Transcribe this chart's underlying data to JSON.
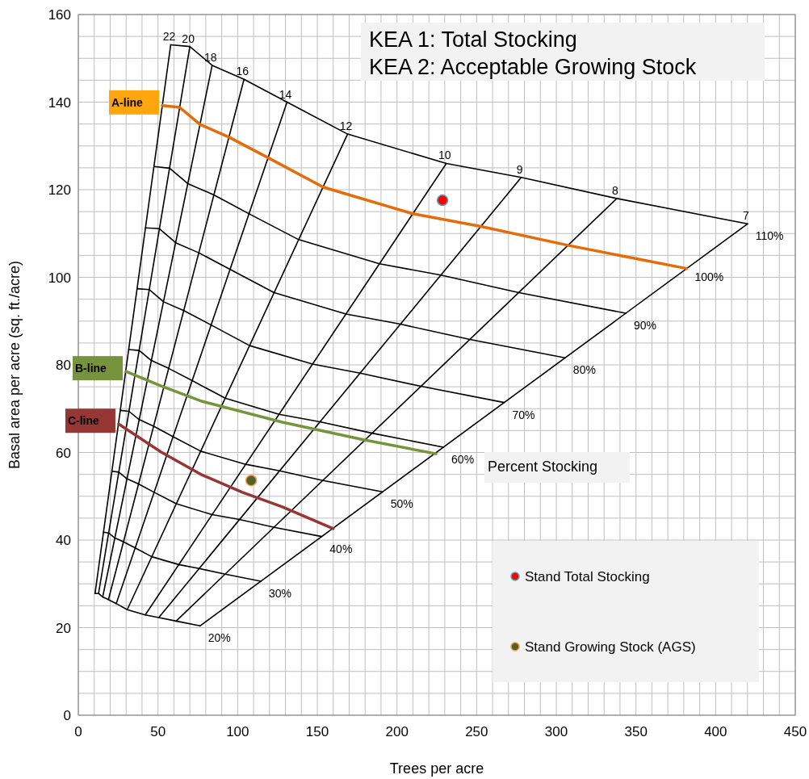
{
  "chart_data": {
    "type": "line",
    "title": "KEA 1: Total Stocking\nKEA 2: Acceptable Growing Stock",
    "xlabel": "Trees per acre",
    "ylabel": "Basal area per acre (sq. ft./acre)",
    "xlim": [
      0,
      450
    ],
    "ylim": [
      0,
      160
    ],
    "xticks": [
      0,
      {
        "value": 10,
        "label": null
      },
      {
        "value": 20,
        "label": null
      },
      {
        "value": 30,
        "label": null
      },
      {
        "value": 40,
        "label": null
      },
      50,
      {
        "value": 60,
        "label": null
      },
      {
        "value": 70,
        "label": null
      },
      {
        "value": 80,
        "label": null
      },
      {
        "value": 90,
        "label": null
      },
      100,
      {
        "value": 110,
        "label": null
      },
      {
        "value": 120,
        "label": null
      },
      {
        "value": 130,
        "label": null
      },
      {
        "value": 140,
        "label": null
      },
      150,
      {
        "value": 160,
        "label": null
      },
      {
        "value": 170,
        "label": null
      },
      {
        "value": 180,
        "label": null
      },
      {
        "value": 190,
        "label": null
      },
      200,
      {
        "value": 210,
        "label": null
      },
      {
        "value": 220,
        "label": null
      },
      {
        "value": 230,
        "label": null
      },
      {
        "value": 240,
        "label": null
      },
      250,
      {
        "value": 260,
        "label": null
      },
      {
        "value": 270,
        "label": null
      },
      {
        "value": 280,
        "label": null
      },
      {
        "value": 290,
        "label": null
      },
      300,
      {
        "value": 310,
        "label": null
      },
      {
        "value": 320,
        "label": null
      },
      {
        "value": 330,
        "label": null
      },
      {
        "value": 340,
        "label": null
      },
      350,
      {
        "value": 360,
        "label": null
      },
      {
        "value": 370,
        "label": null
      },
      {
        "value": 380,
        "label": null
      },
      {
        "value": 390,
        "label": null
      },
      400,
      {
        "value": 410,
        "label": null
      },
      {
        "value": 420,
        "label": null
      },
      {
        "value": 430,
        "label": null
      },
      {
        "value": 440,
        "label": null
      },
      450
    ],
    "yticks": [
      0,
      {
        "value": 5,
        "label": null
      },
      {
        "value": 10,
        "label": null
      },
      {
        "value": 15,
        "label": null
      },
      20,
      {
        "value": 25,
        "label": null
      },
      {
        "value": 30,
        "label": null
      },
      {
        "value": 35,
        "label": null
      },
      40,
      {
        "value": 45,
        "label": null
      },
      {
        "value": 50,
        "label": null
      },
      {
        "value": 55,
        "label": null
      },
      60,
      {
        "value": 65,
        "label": null
      },
      {
        "value": 70,
        "label": null
      },
      {
        "value": 75,
        "label": null
      },
      80,
      {
        "value": 85,
        "label": null
      },
      {
        "value": 90,
        "label": null
      },
      {
        "value": 95,
        "label": null
      },
      100,
      {
        "value": 105,
        "label": null
      },
      {
        "value": 110,
        "label": null
      },
      {
        "value": 115,
        "label": null
      },
      120,
      {
        "value": 125,
        "label": null
      },
      {
        "value": 130,
        "label": null
      },
      {
        "value": 135,
        "label": null
      },
      140,
      {
        "value": 145,
        "label": null
      },
      {
        "value": 150,
        "label": null
      },
      {
        "value": 155,
        "label": null
      },
      160
    ],
    "grid": true,
    "legend": "bottom right",
    "line_style": "solid",
    "series": [
      {
        "name": "22",
        "color": "#000000",
        "x": [
          10.5,
          58
        ],
        "values": [
          27.8,
          153.1
        ]
      },
      {
        "name": "20",
        "color": "#000000",
        "x": [
          12.7,
          70
        ],
        "values": [
          27.8,
          152.7
        ]
      },
      {
        "name": "18",
        "color": "#000000",
        "x": [
          15.3,
          84
        ],
        "values": [
          27.0,
          148.4
        ]
      },
      {
        "name": "16",
        "color": "#000000",
        "x": [
          18.9,
          104
        ],
        "values": [
          26.4,
          145.2
        ]
      },
      {
        "name": "14",
        "color": "#000000",
        "x": [
          23.8,
          131
        ],
        "values": [
          25.5,
          140.0
        ]
      },
      {
        "name": "12",
        "color": "#000000",
        "x": [
          30.7,
          169
        ],
        "values": [
          24.1,
          132.7
        ]
      },
      {
        "name": "10",
        "color": "#000000",
        "x": [
          42.0,
          231
        ],
        "values": [
          22.9,
          126.0
        ]
      },
      {
        "name": "9",
        "color": "#000000",
        "x": [
          50.5,
          278
        ],
        "values": [
          22.3,
          122.8
        ]
      },
      {
        "name": "8",
        "color": "#000000",
        "x": [
          61.4,
          338
        ],
        "values": [
          21.5,
          118.0
        ]
      },
      {
        "name": "7",
        "color": "#000000",
        "x": [
          76.4,
          420
        ],
        "values": [
          20.4,
          112.2
        ]
      },
      {
        "name": "20%",
        "color": "#000000",
        "x": [
          10.5,
          12.7,
          15.3,
          18.9,
          23.8,
          30.7,
          42.0,
          50.5,
          61.4,
          76.4
        ],
        "values": [
          27.8,
          27.8,
          27.0,
          26.4,
          25.5,
          24.1,
          22.9,
          22.3,
          21.5,
          20.4
        ]
      },
      {
        "name": "30%",
        "color": "#000000",
        "x": [
          15.8,
          19.1,
          22.9,
          28.4,
          35.7,
          46.1,
          63.0,
          75.8,
          92.2,
          114.5
        ],
        "values": [
          41.8,
          41.6,
          40.5,
          39.6,
          38.2,
          36.2,
          34.4,
          33.5,
          32.2,
          30.6
        ]
      },
      {
        "name": "40%",
        "color": "#000000",
        "x": [
          21.1,
          25.5,
          30.5,
          37.8,
          47.6,
          61.5,
          84.0,
          101.1,
          122.9,
          152.7
        ],
        "values": [
          55.7,
          55.5,
          54.0,
          52.8,
          50.9,
          48.3,
          45.8,
          44.7,
          42.9,
          40.8
        ]
      },
      {
        "name": "50%",
        "color": "#000000",
        "x": [
          26.4,
          31.8,
          38.2,
          47.3,
          59.5,
          76.8,
          105.0,
          126.4,
          153.6,
          190.9
        ],
        "values": [
          69.6,
          69.4,
          67.5,
          66.0,
          63.6,
          60.3,
          57.3,
          55.8,
          53.6,
          51.0
        ]
      },
      {
        "name": "60%",
        "color": "#000000",
        "x": [
          31.6,
          38.2,
          45.8,
          56.7,
          71.5,
          92.2,
          126.0,
          151.6,
          184.4,
          229.1
        ],
        "values": [
          83.5,
          83.3,
          81.0,
          79.2,
          76.4,
          72.4,
          68.7,
          67.0,
          64.4,
          61.2
        ]
      },
      {
        "name": "70%",
        "color": "#000000",
        "x": [
          36.9,
          44.5,
          53.5,
          66.2,
          83.4,
          107.5,
          147.0,
          176.9,
          215.1,
          267.3
        ],
        "values": [
          97.4,
          97.2,
          94.4,
          92.4,
          89.1,
          84.4,
          80.2,
          78.1,
          75.1,
          71.4
        ]
      },
      {
        "name": "80%",
        "color": "#000000",
        "x": [
          42.2,
          50.9,
          61.1,
          75.6,
          95.3,
          122.9,
          168.0,
          202.2,
          245.8,
          305.5
        ],
        "values": [
          111.3,
          111.1,
          107.9,
          105.6,
          101.8,
          96.5,
          91.6,
          89.3,
          85.8,
          81.6
        ]
      },
      {
        "name": "90%",
        "color": "#000000",
        "x": [
          47.5,
          57.3,
          68.7,
          85.1,
          107.2,
          138.3,
          189.0,
          227.5,
          276.5,
          343.6
        ],
        "values": [
          125.3,
          124.9,
          121.4,
          118.8,
          114.5,
          108.6,
          103.1,
          100.5,
          96.5,
          91.8
        ]
      },
      {
        "name": "110%",
        "color": "#000000",
        "x": [
          58,
          70,
          84,
          104,
          131,
          169,
          231,
          278,
          338,
          420
        ],
        "values": [
          153.1,
          152.7,
          148.4,
          145.2,
          140.0,
          132.7,
          126.0,
          122.8,
          118.0,
          112.2
        ]
      },
      {
        "name": "A-line",
        "color": "#e46c0a",
        "x": [
          52.7,
          63.6,
          76.4,
          94.5,
          119.1,
          153.6,
          210.0,
          252.7,
          307.3,
          381.8
        ],
        "values": [
          139.2,
          138.8,
          134.9,
          132.0,
          127.3,
          120.6,
          114.5,
          111.6,
          107.3,
          102.0
        ]
      },
      {
        "name": "B-line",
        "color": "#77933c",
        "x": [
          29.9,
          52,
          77.5,
          128,
          179,
          224.5
        ],
        "values": [
          78.5,
          75.2,
          71.7,
          66.9,
          62.9,
          59.7
        ]
      },
      {
        "name": "C-line",
        "color": "#953735",
        "x": [
          25.3,
          52,
          77.5,
          103,
          128,
          160
        ],
        "values": [
          66.5,
          60.1,
          54.9,
          50.9,
          47.6,
          42.6
        ]
      },
      {
        "type": "scatter",
        "marker": "circle",
        "name": "Stand Total Stocking",
        "color": "#ff0000",
        "x": [
          228.6
        ],
        "values": [
          117.6
        ]
      },
      {
        "type": "scatter",
        "marker": "circle",
        "name": "Stand Growing Stock (AGS)",
        "color": "#4f6228",
        "x": [
          108.5
        ],
        "values": [
          53.6
        ]
      }
    ],
    "annotations": [
      {
        "text": "100%",
        "x": 381.8,
        "y": 102.0
      },
      "Percent Stocking"
    ]
  }
}
